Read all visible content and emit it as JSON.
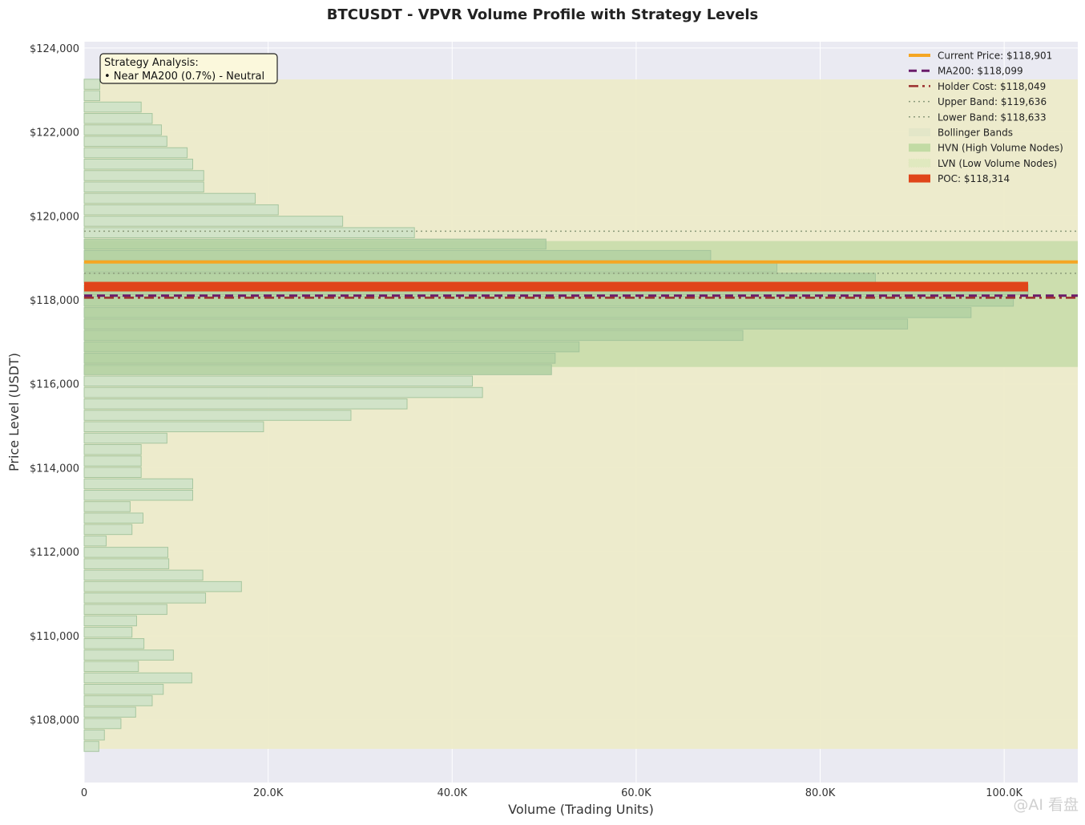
{
  "chart_data": {
    "type": "bar",
    "orientation": "horizontal",
    "title": "BTCUSDT - VPVR Volume Profile with Strategy Levels",
    "xlabel": "Volume (Trading Units)",
    "ylabel": "Price Level (USDT)",
    "xlim": [
      0,
      108000
    ],
    "ylim": [
      106500,
      124150
    ],
    "x_ticks": [
      0,
      20000,
      40000,
      60000,
      80000,
      100000
    ],
    "x_tick_labels": [
      "0",
      "20.0K",
      "40.0K",
      "60.0K",
      "80.0K",
      "100.0K"
    ],
    "y_ticks": [
      108000,
      110000,
      112000,
      114000,
      116000,
      118000,
      120000,
      122000,
      124000
    ],
    "y_tick_labels": [
      "$108,000",
      "$110,000",
      "$112,000",
      "$114,000",
      "$116,000",
      "$118,000",
      "$120,000",
      "$122,000",
      "$124,000"
    ],
    "grid": true,
    "legend_position": "top-right",
    "bin_size": 272,
    "profile": {
      "prices": [
        107360,
        107632,
        107904,
        108176,
        108448,
        108720,
        108992,
        109264,
        109536,
        109808,
        110080,
        110352,
        110624,
        110896,
        111168,
        111440,
        111712,
        111984,
        112256,
        112528,
        112800,
        113072,
        113344,
        113616,
        113888,
        114160,
        114432,
        114704,
        114976,
        115248,
        115520,
        115792,
        116064,
        116336,
        116608,
        116880,
        117152,
        117424,
        117696,
        117968,
        118240,
        118512,
        118784,
        119056,
        119328,
        119600,
        119872,
        120144,
        120416,
        120688,
        120960,
        121232,
        121504,
        121776,
        122048,
        122320,
        122592,
        122864,
        123136
      ],
      "volumes": [
        1600,
        2200,
        4000,
        5600,
        7400,
        8600,
        11700,
        5900,
        9700,
        6500,
        5200,
        5700,
        9000,
        13200,
        17100,
        12900,
        9200,
        9100,
        2400,
        5200,
        6400,
        5000,
        11800,
        11800,
        6200,
        6200,
        6200,
        9000,
        19500,
        29000,
        35100,
        43300,
        42200,
        50800,
        51200,
        53800,
        71600,
        89500,
        96400,
        101000,
        102600,
        86000,
        75300,
        68100,
        50200,
        35900,
        28100,
        21100,
        18600,
        13000,
        13000,
        11800,
        11200,
        9000,
        8400,
        7400,
        6200,
        1700,
        1700
      ],
      "hvn_threshold": 50000,
      "poc_price": 118314
    },
    "levels": [
      {
        "name": "Current Price",
        "value": 118901,
        "color": "#f5a623",
        "style": "solid"
      },
      {
        "name": "MA200",
        "value": 118099,
        "color": "#6a1b6a",
        "style": "dashed"
      },
      {
        "name": "Holder Cost",
        "value": 118049,
        "color": "#9b2d2d",
        "style": "dashdot"
      },
      {
        "name": "Upper Band",
        "value": 119636,
        "color": "#8a9a7a",
        "style": "dotted"
      },
      {
        "name": "Lower Band",
        "value": 118633,
        "color": "#8a9a7a",
        "style": "dotted"
      }
    ],
    "bollinger_fill_range": [
      107300,
      123250
    ],
    "hvn_zone": [
      116400,
      119400
    ],
    "legend": [
      {
        "label": "Current Price: $118,901",
        "kind": "line",
        "color": "#f5a623",
        "style": "solid"
      },
      {
        "label": "MA200: $118,099",
        "kind": "line",
        "color": "#6a1b6a",
        "style": "dashed"
      },
      {
        "label": "Holder Cost: $118,049",
        "kind": "line",
        "color": "#9b2d2d",
        "style": "dashdot"
      },
      {
        "label": "Upper Band: $119,636",
        "kind": "line",
        "color": "#8a9a7a",
        "style": "dotted"
      },
      {
        "label": "Lower Band: $118,633",
        "kind": "line",
        "color": "#8a9a7a",
        "style": "dotted"
      },
      {
        "label": "Bollinger Bands",
        "kind": "patch",
        "color": "#e3e6c8"
      },
      {
        "label": "HVN (High Volume Nodes)",
        "kind": "patch",
        "color": "#c2dba4"
      },
      {
        "label": "LVN (Low Volume Nodes)",
        "kind": "hatch",
        "color": "#d8e8b8"
      },
      {
        "label": "POC: $118,314",
        "kind": "patch",
        "color": "#e0451a"
      }
    ],
    "annotation": {
      "lines": [
        "Strategy Analysis:",
        "• Near MA200 (0.7%) - Neutral"
      ]
    },
    "colors": {
      "plot_bg": "#eaeaf2",
      "bollinger_fill": "#edebc9",
      "hvn_fill": "#c5dca8",
      "bar_light": "#cfe3c8",
      "bar_dark": "#b4d2a4",
      "bar_edge": "#9fc29a",
      "poc": "#e0451a",
      "annotation_bg": "#fbf8dc"
    }
  },
  "watermark": "@AI 看盘"
}
